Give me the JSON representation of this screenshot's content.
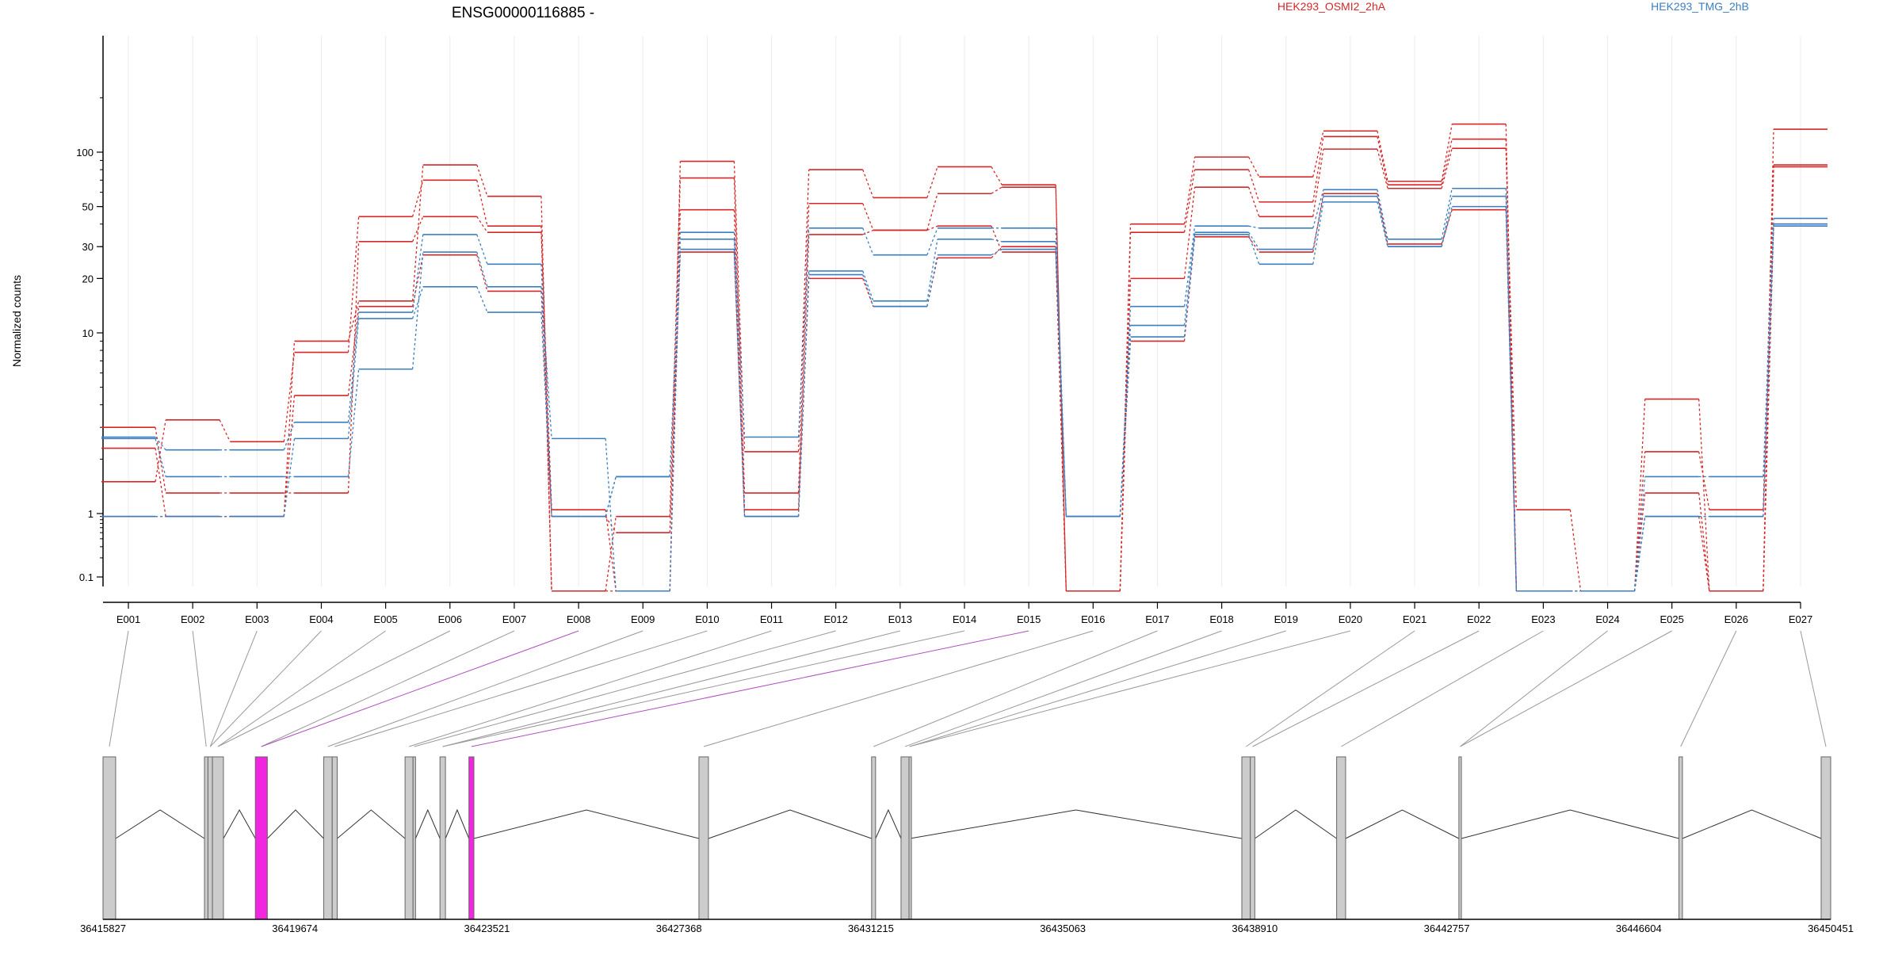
{
  "colors": {
    "red": "#d62728",
    "blue": "#3b7fc0",
    "exon": "#cccccc",
    "highlight": "#f226e0",
    "axis": "#000000",
    "grid": "#ececec"
  },
  "chart_data": {
    "type": "line",
    "title": "ENSG00000116885 -",
    "xlabel": "",
    "ylabel": "Normalized counts",
    "y_scale": "log",
    "grid": true,
    "legend": [
      {
        "name": "HEK293_OSMI2_2hA",
        "color": "#d62728"
      },
      {
        "name": "HEK293_TMG_2hB",
        "color": "#3b7fc0"
      }
    ],
    "y_ticks": [
      0.1,
      1,
      10,
      20,
      30,
      50,
      100
    ],
    "y_tick_labels": [
      "0.1",
      "1",
      "10",
      "20",
      "30",
      "50",
      "100"
    ],
    "categories": [
      "E001",
      "E002",
      "E003",
      "E004",
      "E005",
      "E006",
      "E007",
      "E008",
      "E009",
      "E010",
      "E011",
      "E012",
      "E013",
      "E014",
      "E015",
      "E016",
      "E017",
      "E018",
      "E019",
      "E020",
      "E021",
      "E022",
      "E023",
      "E024",
      "E025",
      "E026",
      "E027"
    ],
    "series": [
      {
        "group": "red",
        "values": [
          2.3,
          0.9,
          0.9,
          4.5,
          14,
          27,
          17,
          0.9,
          0.5,
          28,
          0.9,
          20,
          14,
          26,
          30,
          0.9,
          9,
          34,
          28,
          59,
          31,
          48,
          0.06,
          0.06,
          0.9,
          0.06,
          40
        ]
      },
      {
        "group": "red",
        "values": [
          3.0,
          1.3,
          1.3,
          1.3,
          32,
          44,
          36,
          1.05,
          0.06,
          48,
          1.05,
          35,
          37,
          39,
          28,
          0.06,
          20,
          64,
          44,
          104,
          63,
          105,
          1.05,
          0.06,
          2.2,
          1.05,
          85
        ]
      },
      {
        "group": "red",
        "values": [
          1.5,
          3.3,
          2.5,
          7.8,
          44,
          70,
          39,
          0.06,
          0.9,
          72,
          1.3,
          52,
          37,
          59,
          64,
          0.06,
          36,
          80,
          53,
          122,
          66,
          118,
          0.06,
          0.06,
          1.3,
          0.06,
          83
        ]
      },
      {
        "group": "red",
        "values": [
          0.9,
          0.9,
          0.9,
          9.0,
          15,
          85,
          57,
          0.06,
          0.06,
          89,
          2.2,
          80,
          56,
          83,
          66,
          0.06,
          40,
          94,
          73,
          131,
          69,
          143,
          0.06,
          0.06,
          4.3,
          0.06,
          134
        ]
      },
      {
        "group": "blue",
        "values": [
          2.65,
          2.25,
          2.25,
          3.2,
          13,
          35,
          24,
          0.9,
          1.6,
          36,
          2.65,
          38,
          27,
          38,
          38,
          0.9,
          14,
          39,
          38,
          62,
          33,
          63,
          0.06,
          0.06,
          1.6,
          1.6,
          43
        ]
      },
      {
        "group": "blue",
        "values": [
          2.6,
          1.6,
          1.6,
          1.6,
          6.3,
          28,
          18,
          2.6,
          0.06,
          33,
          0.9,
          22,
          15,
          33,
          32,
          0.9,
          11,
          36,
          29,
          57,
          30,
          57,
          0.06,
          0.06,
          0.9,
          0.9,
          40
        ]
      },
      {
        "group": "blue",
        "values": [
          0.9,
          0.9,
          0.9,
          2.6,
          12,
          18,
          13,
          0.9,
          1.6,
          29,
          0.9,
          21,
          14,
          27,
          29,
          0.9,
          9.5,
          35,
          24,
          53,
          30,
          50,
          0.06,
          0.06,
          0.9,
          0.9,
          39
        ]
      }
    ],
    "genomic_axis": {
      "start": 36415827,
      "end": 36450451,
      "tick_labels": [
        "36415827",
        "36419674",
        "36423521",
        "36427368",
        "36431215",
        "36435063",
        "36438910",
        "36442757",
        "36446604",
        "36450451"
      ]
    },
    "exons": [
      {
        "id": "E001",
        "start": 36415827,
        "end": 36416080,
        "highlight": false
      },
      {
        "id": "E002",
        "start": 36417860,
        "end": 36417930,
        "highlight": false
      },
      {
        "id": "E003",
        "start": 36417930,
        "end": 36418020,
        "highlight": false
      },
      {
        "id": "E004",
        "start": 36418020,
        "end": 36418240,
        "highlight": false
      },
      {
        "id": "E005",
        "start": 36418880,
        "end": 36419120,
        "highlight": true
      },
      {
        "id": "E006",
        "start": 36420250,
        "end": 36420420,
        "highlight": false
      },
      {
        "id": "E007",
        "start": 36420420,
        "end": 36420520,
        "highlight": false
      },
      {
        "id": "E008",
        "start": 36421880,
        "end": 36422040,
        "highlight": false
      },
      {
        "id": "E009",
        "start": 36422040,
        "end": 36422090,
        "highlight": false
      },
      {
        "id": "E010",
        "start": 36422580,
        "end": 36422690,
        "highlight": false
      },
      {
        "id": "E011",
        "start": 36423160,
        "end": 36423260,
        "highlight": true
      },
      {
        "id": "E012",
        "start": 36427770,
        "end": 36427960,
        "highlight": false
      },
      {
        "id": "E013",
        "start": 36431230,
        "end": 36431310,
        "highlight": false
      },
      {
        "id": "E014",
        "start": 36431820,
        "end": 36431980,
        "highlight": false
      },
      {
        "id": "E015",
        "start": 36431980,
        "end": 36432000,
        "highlight": false
      },
      {
        "id": "E016",
        "start": 36438650,
        "end": 36438820,
        "highlight": false
      },
      {
        "id": "E017",
        "start": 36438820,
        "end": 36438910,
        "highlight": false
      },
      {
        "id": "E018",
        "start": 36440550,
        "end": 36440730,
        "highlight": false
      },
      {
        "id": "E019",
        "start": 36443000,
        "end": 36443050,
        "highlight": false
      },
      {
        "id": "E020",
        "start": 36447410,
        "end": 36447480,
        "highlight": false
      },
      {
        "id": "E021",
        "start": 36450260,
        "end": 36450451,
        "highlight": false
      }
    ],
    "exon_mapping": [
      {
        "bin": "E001",
        "exon": "E001",
        "highlight": false
      },
      {
        "bin": "E002",
        "exon": "E002",
        "highlight": false
      },
      {
        "bin": "E003",
        "exon": "E003",
        "highlight": false
      },
      {
        "bin": "E004",
        "exon": "E003",
        "highlight": false
      },
      {
        "bin": "E005",
        "exon": "E004",
        "highlight": false
      },
      {
        "bin": "E006",
        "exon": "E004",
        "highlight": false
      },
      {
        "bin": "E007",
        "exon": "E005",
        "highlight": false
      },
      {
        "bin": "E008",
        "exon": "E005",
        "highlight": true
      },
      {
        "bin": "E009",
        "exon": "E006",
        "highlight": false
      },
      {
        "bin": "E010",
        "exon": "E007",
        "highlight": false
      },
      {
        "bin": "E011",
        "exon": "E008",
        "highlight": false
      },
      {
        "bin": "E012",
        "exon": "E009",
        "highlight": false
      },
      {
        "bin": "E013",
        "exon": "E010",
        "highlight": false
      },
      {
        "bin": "E014",
        "exon": "E010",
        "highlight": false
      },
      {
        "bin": "E015",
        "exon": "E011",
        "highlight": true
      },
      {
        "bin": "E016",
        "exon": "E012",
        "highlight": false
      },
      {
        "bin": "E017",
        "exon": "E013",
        "highlight": false
      },
      {
        "bin": "E018",
        "exon": "E014",
        "highlight": false
      },
      {
        "bin": "E019",
        "exon": "E015",
        "highlight": false
      },
      {
        "bin": "E020",
        "exon": "E015",
        "highlight": false
      },
      {
        "bin": "E021",
        "exon": "E016",
        "highlight": false
      },
      {
        "bin": "E022",
        "exon": "E017",
        "highlight": false
      },
      {
        "bin": "E023",
        "exon": "E018",
        "highlight": false
      },
      {
        "bin": "E024",
        "exon": "E019",
        "highlight": false
      },
      {
        "bin": "E025",
        "exon": "E019",
        "highlight": false
      },
      {
        "bin": "E026",
        "exon": "E020",
        "highlight": false
      },
      {
        "bin": "E027",
        "exon": "E021",
        "highlight": false
      }
    ]
  }
}
